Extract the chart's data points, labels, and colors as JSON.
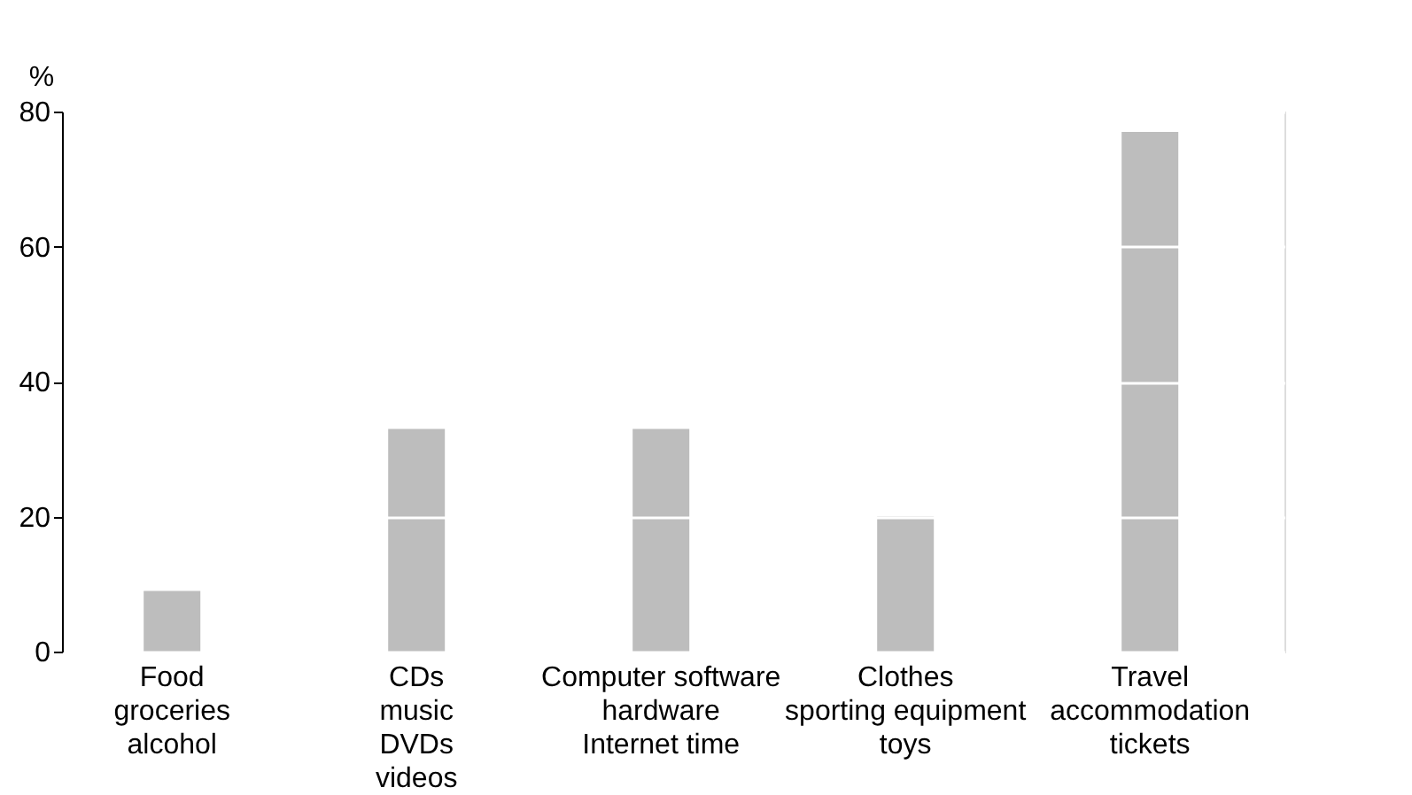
{
  "chart_data": {
    "type": "bar",
    "ylabel": "%",
    "categories": [
      "Food\ngroceries\nalcohol",
      "CDs\nmusic\nDVDs\nvideos",
      "Computer software\nhardware\nInternet time",
      "Clothes\nsporting equipment\ntoys",
      "Travel\naccommodation\ntickets"
    ],
    "values": [
      9,
      33,
      33,
      20,
      77
    ],
    "color": "#bdbdbd",
    "ylim": [
      0,
      80
    ],
    "yticks": [
      0,
      20,
      40,
      60,
      80
    ],
    "grid": "y"
  }
}
